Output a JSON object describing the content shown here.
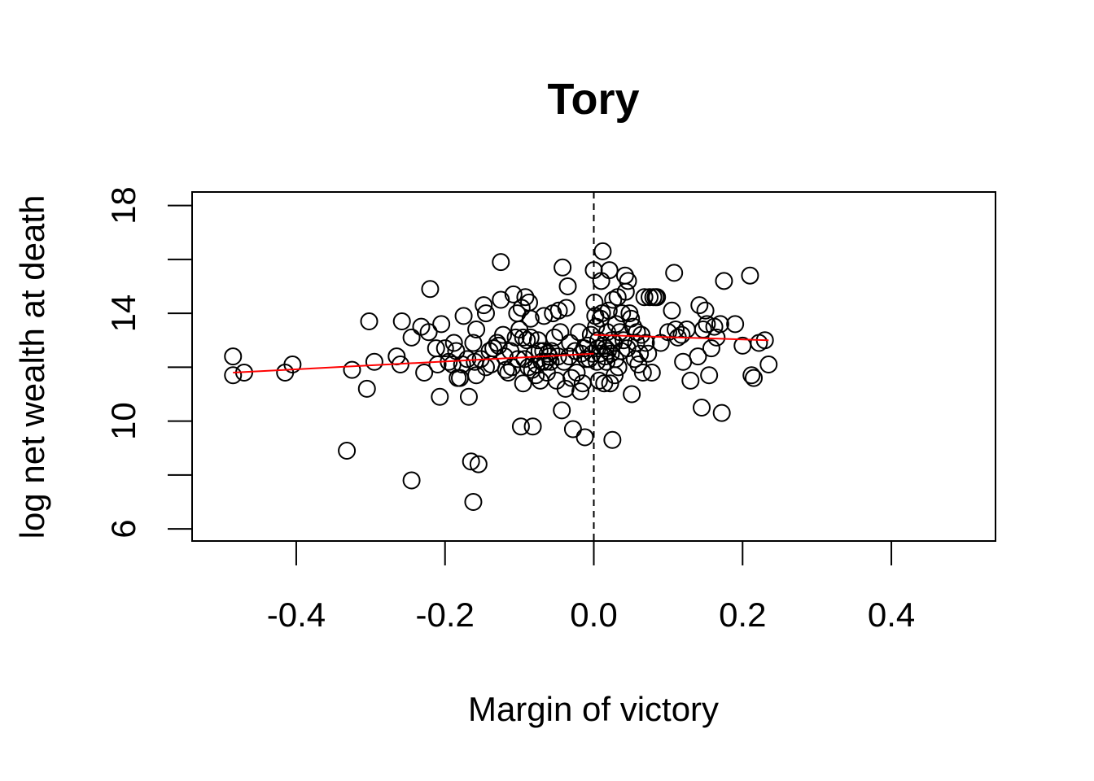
{
  "chart_data": {
    "type": "scatter",
    "title": "Tory",
    "xlabel": "Margin of victory",
    "ylabel": "log net wealth at death",
    "xlim": [
      -0.54,
      0.54
    ],
    "ylim": [
      5.55,
      18.5
    ],
    "xticks": [
      -0.4,
      -0.2,
      0.0,
      0.2,
      0.4
    ],
    "xtick_labels": [
      "-0.4",
      "-0.2",
      "0.0",
      "0.2",
      "0.4"
    ],
    "yticks": [
      6,
      8,
      10,
      12,
      14,
      16,
      18
    ],
    "ytick_labels": [
      "6",
      "10",
      "14",
      "18"
    ],
    "labeled_yticks": [
      6,
      10,
      14,
      18
    ],
    "cutoff_line": {
      "x": 0.0,
      "style": "dashed"
    },
    "fit_lines": [
      {
        "name": "left",
        "x": [
          -0.485,
          0.0
        ],
        "y": [
          11.8,
          12.5
        ],
        "color": "#ff0000"
      },
      {
        "name": "right",
        "x": [
          0.0,
          0.235
        ],
        "y": [
          13.2,
          13.0
        ],
        "color": "#ff0000"
      }
    ],
    "point_style": {
      "marker": "open-circle",
      "color": "#000000"
    },
    "points": [
      [
        -0.485,
        12.4
      ],
      [
        -0.485,
        11.7
      ],
      [
        -0.47,
        11.8
      ],
      [
        -0.415,
        11.8
      ],
      [
        -0.405,
        12.1
      ],
      [
        -0.332,
        8.9
      ],
      [
        -0.325,
        11.9
      ],
      [
        -0.305,
        11.2
      ],
      [
        -0.302,
        13.7
      ],
      [
        -0.295,
        12.2
      ],
      [
        -0.265,
        12.4
      ],
      [
        -0.26,
        12.1
      ],
      [
        -0.258,
        13.7
      ],
      [
        -0.245,
        13.1
      ],
      [
        -0.245,
        7.8
      ],
      [
        -0.232,
        13.5
      ],
      [
        -0.228,
        11.8
      ],
      [
        -0.222,
        13.3
      ],
      [
        -0.22,
        14.9
      ],
      [
        -0.212,
        12.7
      ],
      [
        -0.21,
        12.1
      ],
      [
        -0.207,
        10.9
      ],
      [
        -0.205,
        13.6
      ],
      [
        -0.2,
        12.7
      ],
      [
        -0.195,
        12.2
      ],
      [
        -0.19,
        12.1
      ],
      [
        -0.188,
        12.9
      ],
      [
        -0.185,
        12.6
      ],
      [
        -0.183,
        11.6
      ],
      [
        -0.18,
        11.6
      ],
      [
        -0.177,
        12.1
      ],
      [
        -0.175,
        13.9
      ],
      [
        -0.17,
        12.3
      ],
      [
        -0.168,
        10.9
      ],
      [
        -0.165,
        8.5
      ],
      [
        -0.162,
        7.0
      ],
      [
        -0.162,
        12.9
      ],
      [
        -0.16,
        12.2
      ],
      [
        -0.158,
        13.4
      ],
      [
        -0.158,
        11.7
      ],
      [
        -0.155,
        8.4
      ],
      [
        -0.152,
        12.3
      ],
      [
        -0.148,
        14.3
      ],
      [
        -0.145,
        12.0
      ],
      [
        -0.145,
        14.0
      ],
      [
        -0.14,
        12.6
      ],
      [
        -0.138,
        12.1
      ],
      [
        -0.135,
        12.7
      ],
      [
        -0.13,
        12.9
      ],
      [
        -0.128,
        12.8
      ],
      [
        -0.125,
        15.9
      ],
      [
        -0.125,
        14.5
      ],
      [
        -0.122,
        13.2
      ],
      [
        -0.12,
        12.4
      ],
      [
        -0.118,
        11.9
      ],
      [
        -0.115,
        11.8
      ],
      [
        -0.112,
        12.6
      ],
      [
        -0.11,
        12.0
      ],
      [
        -0.108,
        14.7
      ],
      [
        -0.105,
        13.1
      ],
      [
        -0.103,
        14.0
      ],
      [
        -0.102,
        12.3
      ],
      [
        -0.1,
        13.4
      ],
      [
        -0.098,
        9.8
      ],
      [
        -0.097,
        14.2
      ],
      [
        -0.095,
        13.1
      ],
      [
        -0.095,
        11.4
      ],
      [
        -0.093,
        12.3
      ],
      [
        -0.092,
        14.6
      ],
      [
        -0.09,
        13.0
      ],
      [
        -0.088,
        12.0
      ],
      [
        -0.087,
        14.4
      ],
      [
        -0.085,
        13.8
      ],
      [
        -0.085,
        13.1
      ],
      [
        -0.083,
        11.9
      ],
      [
        -0.082,
        9.8
      ],
      [
        -0.08,
        12.5
      ],
      [
        -0.078,
        11.7
      ],
      [
        -0.077,
        12.1
      ],
      [
        -0.075,
        13.0
      ],
      [
        -0.073,
        12.6
      ],
      [
        -0.072,
        11.5
      ],
      [
        -0.07,
        12.2
      ],
      [
        -0.068,
        12.6
      ],
      [
        -0.067,
        13.9
      ],
      [
        -0.065,
        12.2
      ],
      [
        -0.063,
        11.8
      ],
      [
        -0.062,
        12.5
      ],
      [
        -0.06,
        12.4
      ],
      [
        -0.058,
        12.2
      ],
      [
        -0.057,
        12.6
      ],
      [
        -0.055,
        14.0
      ],
      [
        -0.053,
        13.1
      ],
      [
        -0.05,
        11.5
      ],
      [
        -0.048,
        12.4
      ],
      [
        -0.047,
        14.1
      ],
      [
        -0.045,
        13.3
      ],
      [
        -0.043,
        10.4
      ],
      [
        -0.042,
        15.7
      ],
      [
        -0.04,
        12.2
      ],
      [
        -0.038,
        11.2
      ],
      [
        -0.037,
        14.2
      ],
      [
        -0.035,
        15.0
      ],
      [
        -0.033,
        12.4
      ],
      [
        -0.032,
        12.9
      ],
      [
        -0.03,
        11.6
      ],
      [
        -0.028,
        9.7
      ],
      [
        -0.025,
        12.6
      ],
      [
        -0.023,
        11.8
      ],
      [
        -0.02,
        13.3
      ],
      [
        -0.018,
        11.1
      ],
      [
        -0.017,
        12.5
      ],
      [
        -0.015,
        11.4
      ],
      [
        -0.013,
        12.7
      ],
      [
        -0.012,
        9.4
      ],
      [
        -0.01,
        12.3
      ],
      [
        -0.008,
        12.8
      ],
      [
        -0.006,
        12.3
      ],
      [
        -0.004,
        13.2
      ],
      [
        -0.002,
        12.5
      ],
      [
        0.0,
        15.6
      ],
      [
        0.001,
        14.4
      ],
      [
        0.002,
        13.9
      ],
      [
        0.003,
        13.5
      ],
      [
        0.004,
        12.2
      ],
      [
        0.005,
        12.7
      ],
      [
        0.006,
        13.0
      ],
      [
        0.007,
        11.5
      ],
      [
        0.008,
        12.5
      ],
      [
        0.009,
        13.8
      ],
      [
        0.01,
        15.2
      ],
      [
        0.011,
        14.0
      ],
      [
        0.012,
        16.3
      ],
      [
        0.013,
        12.8
      ],
      [
        0.014,
        11.4
      ],
      [
        0.015,
        12.4
      ],
      [
        0.016,
        12.7
      ],
      [
        0.017,
        12.2
      ],
      [
        0.018,
        13.3
      ],
      [
        0.019,
        12.6
      ],
      [
        0.02,
        14.1
      ],
      [
        0.021,
        15.6
      ],
      [
        0.022,
        11.4
      ],
      [
        0.023,
        12.5
      ],
      [
        0.024,
        13.0
      ],
      [
        0.025,
        9.3
      ],
      [
        0.026,
        14.5
      ],
      [
        0.027,
        12.9
      ],
      [
        0.028,
        11.7
      ],
      [
        0.029,
        12.3
      ],
      [
        0.03,
        13.6
      ],
      [
        0.032,
        14.6
      ],
      [
        0.033,
        12.0
      ],
      [
        0.035,
        13.3
      ],
      [
        0.037,
        12.6
      ],
      [
        0.038,
        14.0
      ],
      [
        0.04,
        13.0
      ],
      [
        0.042,
        15.4
      ],
      [
        0.043,
        14.8
      ],
      [
        0.045,
        12.7
      ],
      [
        0.046,
        15.2
      ],
      [
        0.048,
        14.0
      ],
      [
        0.05,
        13.8
      ],
      [
        0.051,
        11.0
      ],
      [
        0.053,
        13.5
      ],
      [
        0.055,
        12.3
      ],
      [
        0.057,
        12.9
      ],
      [
        0.058,
        13.3
      ],
      [
        0.06,
        12.1
      ],
      [
        0.062,
        12.5
      ],
      [
        0.064,
        13.2
      ],
      [
        0.066,
        11.8
      ],
      [
        0.068,
        14.6
      ],
      [
        0.07,
        12.9
      ],
      [
        0.073,
        12.5
      ],
      [
        0.075,
        14.6
      ],
      [
        0.078,
        11.8
      ],
      [
        0.08,
        14.6
      ],
      [
        0.083,
        14.6
      ],
      [
        0.085,
        14.6
      ],
      [
        0.09,
        12.9
      ],
      [
        0.1,
        13.3
      ],
      [
        0.105,
        14.1
      ],
      [
        0.108,
        15.5
      ],
      [
        0.11,
        13.4
      ],
      [
        0.113,
        13.1
      ],
      [
        0.118,
        13.2
      ],
      [
        0.12,
        12.2
      ],
      [
        0.125,
        13.4
      ],
      [
        0.13,
        11.5
      ],
      [
        0.14,
        12.4
      ],
      [
        0.142,
        14.3
      ],
      [
        0.145,
        10.5
      ],
      [
        0.147,
        13.4
      ],
      [
        0.15,
        14.1
      ],
      [
        0.152,
        13.6
      ],
      [
        0.155,
        11.7
      ],
      [
        0.158,
        12.7
      ],
      [
        0.162,
        13.5
      ],
      [
        0.165,
        13.1
      ],
      [
        0.17,
        13.6
      ],
      [
        0.172,
        10.3
      ],
      [
        0.175,
        15.2
      ],
      [
        0.19,
        13.6
      ],
      [
        0.2,
        12.8
      ],
      [
        0.21,
        15.4
      ],
      [
        0.212,
        11.7
      ],
      [
        0.215,
        11.6
      ],
      [
        0.222,
        12.9
      ],
      [
        0.23,
        13.0
      ],
      [
        0.235,
        12.1
      ]
    ]
  }
}
